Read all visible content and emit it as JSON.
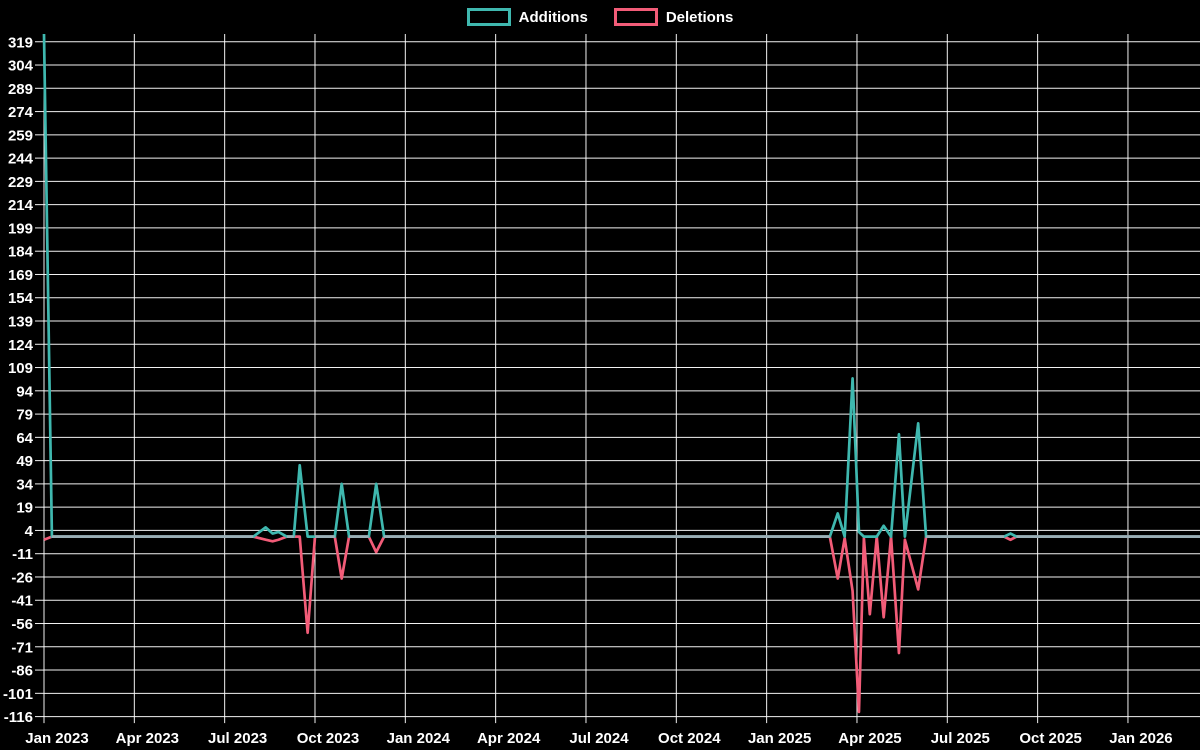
{
  "page": {
    "background": "#000000",
    "text_color": "#ffffff"
  },
  "chart_data": {
    "type": "line",
    "title": "",
    "legend_position": "top-center",
    "grid": true,
    "background": "#000000",
    "grid_color": "#ffffff",
    "text_color": "#ffffff",
    "overlap_color": "#9BAFB6",
    "x_axis": {
      "labels": [
        "Jan 2023",
        "Apr 2023",
        "Jul 2023",
        "Oct 2023",
        "Jan 2024",
        "Apr 2024",
        "Jul 2024",
        "Oct 2024",
        "Jan 2025",
        "Apr 2025",
        "Jul 2025",
        "Oct 2025",
        "Jan 2026"
      ],
      "tick_interval_months": 3
    },
    "y_axis": {
      "min": -116,
      "max": 324,
      "tick_step": 15,
      "ticks": [
        319,
        304,
        289,
        274,
        259,
        244,
        229,
        214,
        199,
        184,
        169,
        154,
        139,
        124,
        109,
        94,
        79,
        64,
        49,
        34,
        19,
        4,
        -11,
        -26,
        -41,
        -56,
        -71,
        -86,
        -101,
        -116
      ]
    },
    "series": [
      {
        "name": "Additions",
        "color": "#3FB8AF"
      },
      {
        "name": "Deletions",
        "color": "#F25C78"
      }
    ],
    "points": [
      {
        "date": "2023-01-01",
        "additions": 324,
        "deletions": -2
      },
      {
        "date": "2023-01-09",
        "additions": 0,
        "deletions": 0
      },
      {
        "date": "2023-07-30",
        "additions": 0,
        "deletions": 0
      },
      {
        "date": "2023-08-12",
        "additions": 6,
        "deletions": -2
      },
      {
        "date": "2023-08-19",
        "additions": 2,
        "deletions": -3
      },
      {
        "date": "2023-08-25",
        "additions": 3,
        "deletions": -2
      },
      {
        "date": "2023-09-03",
        "additions": 0,
        "deletions": 0
      },
      {
        "date": "2023-09-10",
        "additions": 0,
        "deletions": 0
      },
      {
        "date": "2023-09-16",
        "additions": 46,
        "deletions": 0
      },
      {
        "date": "2023-09-24",
        "additions": 0,
        "deletions": -62
      },
      {
        "date": "2023-10-01",
        "additions": 0,
        "deletions": 0
      },
      {
        "date": "2023-10-21",
        "additions": 0,
        "deletions": 0
      },
      {
        "date": "2023-10-28",
        "additions": 34,
        "deletions": -27
      },
      {
        "date": "2023-11-05",
        "additions": 0,
        "deletions": 0
      },
      {
        "date": "2023-11-25",
        "additions": 0,
        "deletions": 0
      },
      {
        "date": "2023-12-02",
        "additions": 34,
        "deletions": -10
      },
      {
        "date": "2023-12-10",
        "additions": 0,
        "deletions": 0
      },
      {
        "date": "2025-03-04",
        "additions": 0,
        "deletions": 0
      },
      {
        "date": "2025-03-12",
        "additions": 15,
        "deletions": -27
      },
      {
        "date": "2025-03-19",
        "additions": 0,
        "deletions": -1
      },
      {
        "date": "2025-03-27",
        "additions": 102,
        "deletions": -35
      },
      {
        "date": "2025-04-03",
        "additions": 3,
        "deletions": -113
      },
      {
        "date": "2025-04-08",
        "additions": 0,
        "deletions": -1
      },
      {
        "date": "2025-04-14",
        "additions": 0,
        "deletions": -50
      },
      {
        "date": "2025-04-21",
        "additions": 0,
        "deletions": 0
      },
      {
        "date": "2025-04-28",
        "additions": 7,
        "deletions": -52
      },
      {
        "date": "2025-05-05",
        "additions": 0,
        "deletions": 0
      },
      {
        "date": "2025-05-13",
        "additions": 66,
        "deletions": -75
      },
      {
        "date": "2025-05-19",
        "additions": 0,
        "deletions": -2
      },
      {
        "date": "2025-06-02",
        "additions": 73,
        "deletions": -34
      },
      {
        "date": "2025-06-10",
        "additions": 0,
        "deletions": 0
      },
      {
        "date": "2025-08-28",
        "additions": 0,
        "deletions": 0
      },
      {
        "date": "2025-09-04",
        "additions": 2,
        "deletions": -2
      },
      {
        "date": "2025-09-10",
        "additions": 0,
        "deletions": 0
      },
      {
        "date": "2026-03-13",
        "additions": 0,
        "deletions": 0
      }
    ]
  }
}
